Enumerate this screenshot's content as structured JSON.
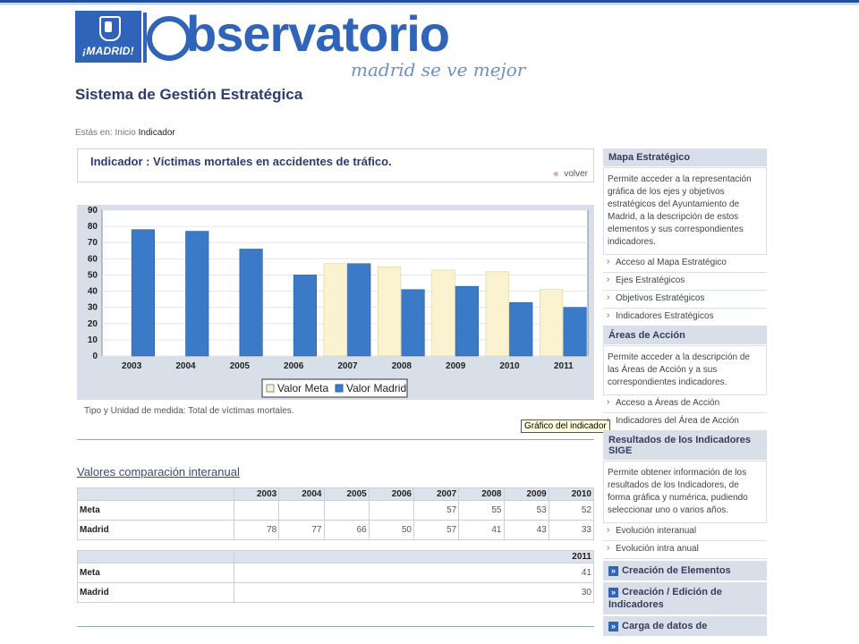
{
  "header": {
    "logo_text": "¡MADRID!",
    "brand": "bservatorio",
    "tagline": "madrid se ve mejor",
    "page_title": "Sistema de Gestión Estratégica"
  },
  "breadcrumb": {
    "prefix": "Estás en:",
    "home": "Inicio",
    "current": "Indicador"
  },
  "indicator": {
    "title": "Indicador : Víctimas mortales en accidentes de tráfico.",
    "back_label": "volver"
  },
  "chart_data": {
    "type": "bar",
    "categories": [
      "2003",
      "2004",
      "2005",
      "2006",
      "2007",
      "2008",
      "2009",
      "2010",
      "2011"
    ],
    "series": [
      {
        "name": "Valor Meta",
        "color": "#fbf3cf",
        "values": [
          null,
          null,
          null,
          null,
          57,
          55,
          53,
          52,
          41
        ]
      },
      {
        "name": "Valor Madrid",
        "color": "#3a7ac6",
        "values": [
          78,
          77,
          66,
          50,
          57,
          41,
          43,
          33,
          30
        ]
      }
    ],
    "ylim": [
      0,
      90
    ],
    "yticks": [
      0,
      10,
      20,
      30,
      40,
      50,
      60,
      70,
      80,
      90
    ],
    "legend": "bottom",
    "grid": true
  },
  "chart_note": "Tipo y Unidad de medida: Total de víctimas mortales.",
  "tooltip": "Gráfico del indicador",
  "values_section": {
    "title": "Valores  comparación interanual",
    "table1": {
      "years": [
        "2003",
        "2004",
        "2005",
        "2006",
        "2007",
        "2008",
        "2009",
        "2010"
      ],
      "rows": [
        {
          "label": "Meta",
          "values": [
            "",
            "",
            "",
            "",
            "57",
            "55",
            "53",
            "52"
          ]
        },
        {
          "label": "Madrid",
          "values": [
            "78",
            "77",
            "66",
            "50",
            "57",
            "41",
            "43",
            "33"
          ]
        }
      ]
    },
    "table2": {
      "years": [
        "2011"
      ],
      "rows": [
        {
          "label": "Meta",
          "values": [
            "41"
          ]
        },
        {
          "label": "Madrid",
          "values": [
            "30"
          ]
        }
      ]
    }
  },
  "sidebar": {
    "mapa": {
      "title": "Mapa Estratégico",
      "desc": "Permite acceder a la representación gráfica de los ejes y objetivos estratégicos del Ayuntamiento de Madrid, a la descripción de estos elementos y sus correspondientes indicadores.",
      "links": [
        "Acceso al Mapa Estratégico",
        "Ejes Estratégicos",
        "Objetivos Estratégicos",
        "Indicadores Estratégicos"
      ]
    },
    "areas": {
      "title": "Áreas de Acción",
      "desc": "Permite acceder a la descripción de las Áreas de Acción y a sus correspondientes indicadores.",
      "links": [
        "Acceso a Áreas de Acción",
        "Indicadores del Área de Acción"
      ]
    },
    "resultados": {
      "title": "Resultados de los Indicadores SIGE",
      "desc": "Permite obtener información de los resultados de los Indicadores, de forma gráfica y numérica, pudiendo seleccionar uno o varios años.",
      "links": [
        "Evolución interanual",
        "Evolución intra anual"
      ]
    },
    "buttons": [
      "Creación de Elementos",
      "Creación / Edición de Indicadores",
      "Carga de datos de"
    ]
  }
}
